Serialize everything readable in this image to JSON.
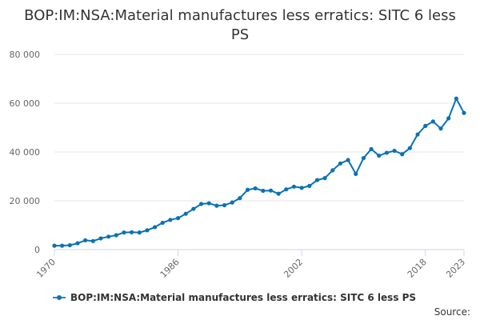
{
  "title": "BOP:IM:NSA:Material manufactures less erratics: SITC 6 less PS",
  "source_label": "Source:",
  "colors": {
    "series": "#0a72b4",
    "grid": "#e6e6e6",
    "axis": "#ccd6eb",
    "text": "#666666"
  },
  "chart_data": {
    "type": "line",
    "title": "BOP:IM:NSA:Material manufactures less erratics: SITC 6 less PS",
    "xlabel": "",
    "ylabel": "",
    "xlim": [
      1970,
      2023
    ],
    "ylim": [
      0,
      80000
    ],
    "x_ticks": [
      1970,
      1986,
      2002,
      2018,
      2023
    ],
    "y_ticks": [
      0,
      20000,
      40000,
      60000,
      80000
    ],
    "y_tick_labels": [
      "0",
      "20 000",
      "40 000",
      "60 000",
      "80 000"
    ],
    "grid": true,
    "legend": "bottom",
    "series": [
      {
        "name": "BOP:IM:NSA:Material manufactures less erratics: SITC 6 less PS",
        "x": [
          1970,
          1971,
          1972,
          1973,
          1974,
          1975,
          1976,
          1977,
          1978,
          1979,
          1980,
          1981,
          1982,
          1983,
          1984,
          1985,
          1986,
          1987,
          1988,
          1989,
          1990,
          1991,
          1992,
          1993,
          1994,
          1995,
          1996,
          1997,
          1998,
          1999,
          2000,
          2001,
          2002,
          2003,
          2004,
          2005,
          2006,
          2007,
          2008,
          2009,
          2010,
          2011,
          2012,
          2013,
          2014,
          2015,
          2016,
          2017,
          2018,
          2019,
          2020,
          2021,
          2022,
          2023
        ],
        "values": [
          1600,
          1600,
          1800,
          2600,
          3800,
          3500,
          4600,
          5300,
          5900,
          7000,
          7100,
          7000,
          7900,
          9200,
          11000,
          12200,
          12900,
          14700,
          16700,
          18700,
          19000,
          18000,
          18200,
          19300,
          21100,
          24500,
          25100,
          24100,
          24200,
          22900,
          24700,
          25800,
          25300,
          26100,
          28500,
          29300,
          32500,
          35300,
          36700,
          31000,
          37500,
          41200,
          38500,
          39700,
          40500,
          39100,
          41600,
          47200,
          50700,
          52500,
          49600,
          53800,
          61900,
          56000
        ]
      }
    ]
  }
}
